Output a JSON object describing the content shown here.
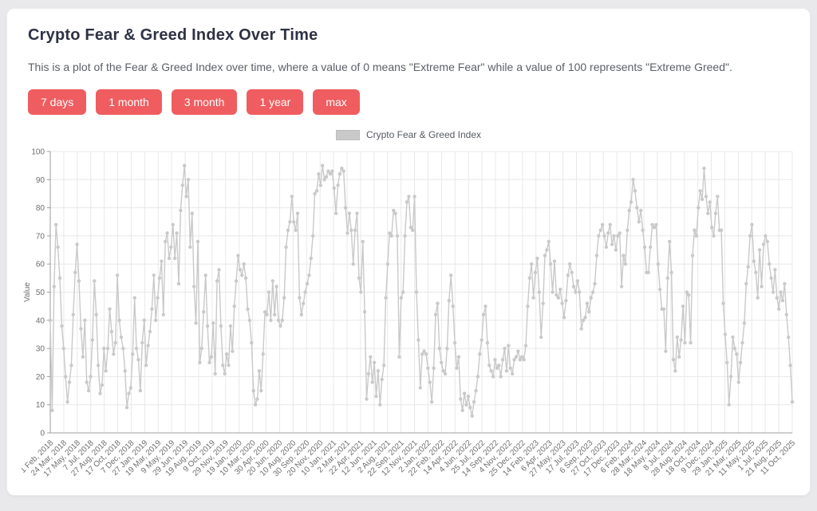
{
  "page": {
    "background": "#e9e9eb",
    "accent_color": "#ef5d60"
  },
  "header": {
    "title": "Crypto Fear & Greed Index Over Time",
    "description": "This is a plot of the Fear & Greed Index over time, where a value of 0 means \"Extreme Fear\" while a value of 100 represents \"Extreme Greed\"."
  },
  "buttons": [
    {
      "label": "7 days"
    },
    {
      "label": "1 month"
    },
    {
      "label": "3 month"
    },
    {
      "label": "1 year"
    },
    {
      "label": "max"
    }
  ],
  "chart_data": {
    "type": "line",
    "legend": "Crypto Fear & Greed Index",
    "legend_position": "top-center",
    "title": "",
    "xlabel": "",
    "ylabel": "Value",
    "ylim": [
      0,
      100
    ],
    "y_ticks": [
      0,
      10,
      20,
      30,
      40,
      50,
      60,
      70,
      80,
      90,
      100
    ],
    "grid": true,
    "series_color": "#c9c9c9",
    "grid_color": "#e8e8e8",
    "axis_color": "#9c9c9c",
    "x_tick_labels": [
      "1 Feb, 2018",
      "24 Mar, 2018",
      "17 May, 2018",
      "7 Jul, 2018",
      "27 Aug, 2018",
      "17 Oct, 2018",
      "7 Dec, 2018",
      "27 Jan, 2019",
      "19 Mar, 2019",
      "9 May, 2019",
      "29 Jun, 2019",
      "19 Aug, 2019",
      "9 Oct, 2019",
      "29 Nov, 2019",
      "19 Jan, 2020",
      "10 Mar, 2020",
      "30 Apr, 2020",
      "20 Jun, 2020",
      "10 Aug, 2020",
      "30 Sep, 2020",
      "20 Nov, 2020",
      "10 Jan, 2021",
      "2 Mar, 2021",
      "22 Apr, 2021",
      "12 Jun, 2021",
      "2 Aug, 2021",
      "22 Sep, 2021",
      "12 Nov, 2021",
      "2 Jan, 2022",
      "22 Feb, 2022",
      "14 Apr, 2022",
      "4 Jun, 2022",
      "25 Jul, 2022",
      "14 Sep, 2022",
      "4 Nov, 2022",
      "25 Dec, 2022",
      "14 Feb, 2023",
      "6 Apr, 2023",
      "27 May, 2023",
      "17 Jul, 2023",
      "6 Sep, 2023",
      "27 Oct, 2023",
      "17 Dec, 2023",
      "6 Feb, 2024",
      "28 Mar, 2024",
      "18 May, 2024",
      "8 Jul, 2024",
      "28 Aug, 2024",
      "18 Oct, 2024",
      "9 Dec, 2024",
      "29 Jan, 2025",
      "21 Mar, 2025",
      "11 May, 2025",
      "1 Jul, 2025",
      "21 Aug, 2025",
      "11 Oct, 2025"
    ],
    "series": [
      {
        "name": "Crypto Fear & Greed Index",
        "values": [
          40,
          8,
          52,
          74,
          66,
          55,
          38,
          30,
          20,
          11,
          18,
          24,
          42,
          57,
          67,
          54,
          37,
          27,
          40,
          18,
          15,
          20,
          33,
          54,
          42,
          24,
          14,
          17,
          30,
          22,
          30,
          44,
          36,
          28,
          32,
          56,
          40,
          34,
          30,
          22,
          9,
          14,
          16,
          28,
          48,
          30,
          26,
          15,
          32,
          40,
          24,
          31,
          36,
          44,
          56,
          40,
          48,
          55,
          61,
          42,
          68,
          71,
          62,
          66,
          74,
          62,
          71,
          53,
          79,
          88,
          95,
          84,
          90,
          66,
          78,
          52,
          39,
          68,
          25,
          30,
          43,
          56,
          38,
          25,
          27,
          39,
          21,
          54,
          58,
          38,
          24,
          21,
          28,
          24,
          38,
          29,
          45,
          54,
          63,
          58,
          56,
          60,
          55,
          44,
          40,
          32,
          15,
          10,
          12,
          22,
          15,
          28,
          43,
          42,
          50,
          40,
          54,
          42,
          52,
          40,
          38,
          40,
          48,
          66,
          72,
          75,
          84,
          75,
          72,
          78,
          48,
          42,
          46,
          50,
          53,
          56,
          62,
          70,
          85,
          86,
          92,
          88,
          95,
          90,
          91,
          93,
          92,
          93,
          87,
          78,
          88,
          92,
          94,
          93,
          80,
          71,
          78,
          72,
          60,
          72,
          78,
          55,
          50,
          68,
          43,
          12,
          21,
          27,
          18,
          25,
          13,
          22,
          10,
          19,
          24,
          48,
          60,
          71,
          70,
          79,
          78,
          70,
          27,
          48,
          50,
          70,
          82,
          84,
          73,
          72,
          84,
          50,
          33,
          16,
          28,
          29,
          28,
          23,
          18,
          11,
          23,
          42,
          46,
          30,
          25,
          22,
          21,
          30,
          47,
          56,
          45,
          32,
          23,
          27,
          12,
          8,
          14,
          10,
          13,
          9,
          6,
          11,
          15,
          20,
          28,
          33,
          42,
          45,
          32,
          24,
          22,
          20,
          26,
          23,
          24,
          20,
          26,
          30,
          22,
          31,
          23,
          21,
          26,
          27,
          29,
          26,
          27,
          26,
          31,
          45,
          55,
          60,
          48,
          57,
          62,
          50,
          34,
          46,
          63,
          65,
          68,
          60,
          50,
          61,
          49,
          48,
          51,
          46,
          41,
          47,
          56,
          60,
          57,
          52,
          50,
          54,
          50,
          37,
          40,
          41,
          46,
          43,
          48,
          50,
          53,
          63,
          70,
          72,
          74,
          70,
          66,
          71,
          74,
          67,
          70,
          65,
          70,
          71,
          52,
          63,
          60,
          72,
          79,
          82,
          90,
          86,
          80,
          75,
          79,
          72,
          66,
          57,
          57,
          66,
          74,
          73,
          74,
          60,
          51,
          44,
          44,
          29,
          55,
          68,
          57,
          26,
          22,
          34,
          27,
          33,
          45,
          32,
          50,
          49,
          32,
          63,
          72,
          70,
          80,
          86,
          83,
          94,
          84,
          78,
          82,
          73,
          70,
          78,
          84,
          72,
          72,
          46,
          35,
          25,
          10,
          20,
          34,
          30,
          28,
          18,
          25,
          32,
          39,
          53,
          59,
          70,
          74,
          61,
          57,
          48,
          65,
          52,
          67,
          70,
          68,
          60,
          55,
          50,
          58,
          48,
          44,
          50,
          47,
          53,
          42,
          34,
          24,
          11
        ]
      }
    ]
  }
}
